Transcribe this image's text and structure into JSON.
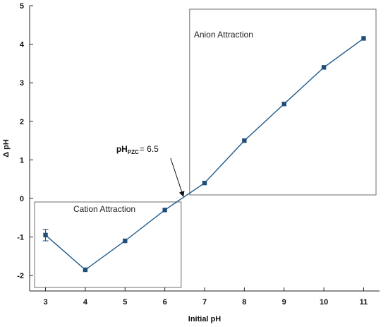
{
  "chart_data": {
    "type": "line",
    "xlabel": "Initial pH",
    "ylabel": "Δ pH",
    "xlim": [
      2.6,
      11.4
    ],
    "ylim": [
      -2.4,
      5
    ],
    "x_ticks": [
      3,
      4,
      5,
      6,
      7,
      8,
      9,
      10,
      11
    ],
    "y_ticks": [
      -2,
      -1,
      0,
      1,
      2,
      3,
      4,
      5
    ],
    "series": [
      {
        "x": [
          3,
          4,
          5,
          6,
          7,
          8,
          9,
          10,
          11
        ],
        "values": [
          -0.95,
          -1.85,
          -1.1,
          -0.3,
          0.4,
          1.5,
          2.45,
          3.4,
          4.15
        ],
        "error": [
          0.15,
          0.03,
          0.03,
          0.03,
          0.03,
          0.03,
          0.03,
          0.03,
          0.05
        ]
      }
    ],
    "regions": [
      {
        "label": "Cation Attraction",
        "x_range": [
          2.6,
          6.5
        ],
        "y_range": [
          -2.4,
          0
        ]
      },
      {
        "label": "Anion Attraction",
        "x_range": [
          6.5,
          11.4
        ],
        "y_range": [
          0,
          5
        ]
      }
    ],
    "annotation": {
      "prefix": "pH",
      "subscript": "PZC",
      "suffix": "= 6.5",
      "x": 6.5,
      "y": 0
    },
    "colors": {
      "line": "#1f5a8a",
      "marker": "#1f4e79",
      "box": "#6e6e6e",
      "axis": "#222222"
    }
  }
}
